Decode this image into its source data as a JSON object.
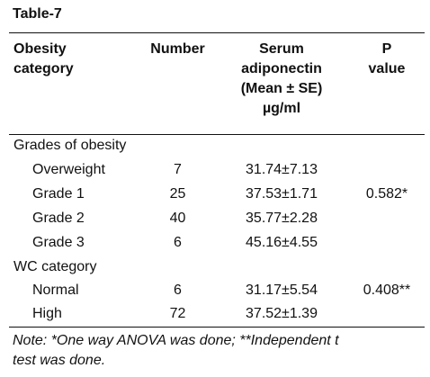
{
  "title": "Table-7",
  "headers": {
    "col1": [
      "Obesity",
      "category"
    ],
    "col2": [
      "Number"
    ],
    "col3": [
      "Serum",
      "adiponectin",
      "(Mean ± SE)",
      "µg/ml"
    ],
    "col4": [
      "P",
      "value"
    ]
  },
  "groups": [
    {
      "label": "Grades of obesity",
      "rows": [
        {
          "name": "Overweight",
          "number": "7",
          "mean": "31.74±7.13",
          "p": ""
        },
        {
          "name": "Grade 1",
          "number": "25",
          "mean": "37.53±1.71",
          "p": "0.582*"
        },
        {
          "name": "Grade 2",
          "number": "40",
          "mean": "35.77±2.28",
          "p": ""
        },
        {
          "name": "Grade 3",
          "number": "6",
          "mean": "45.16±4.55",
          "p": ""
        }
      ]
    },
    {
      "label": "WC category",
      "rows": [
        {
          "name": "Normal",
          "number": "6",
          "mean": "31.17±5.54",
          "p": "0.408**"
        },
        {
          "name": "High",
          "number": "72",
          "mean": "37.52±1.39",
          "p": ""
        }
      ]
    }
  ],
  "note": [
    "Note: *One way ANOVA was done; **Independent t",
    "test was done."
  ]
}
